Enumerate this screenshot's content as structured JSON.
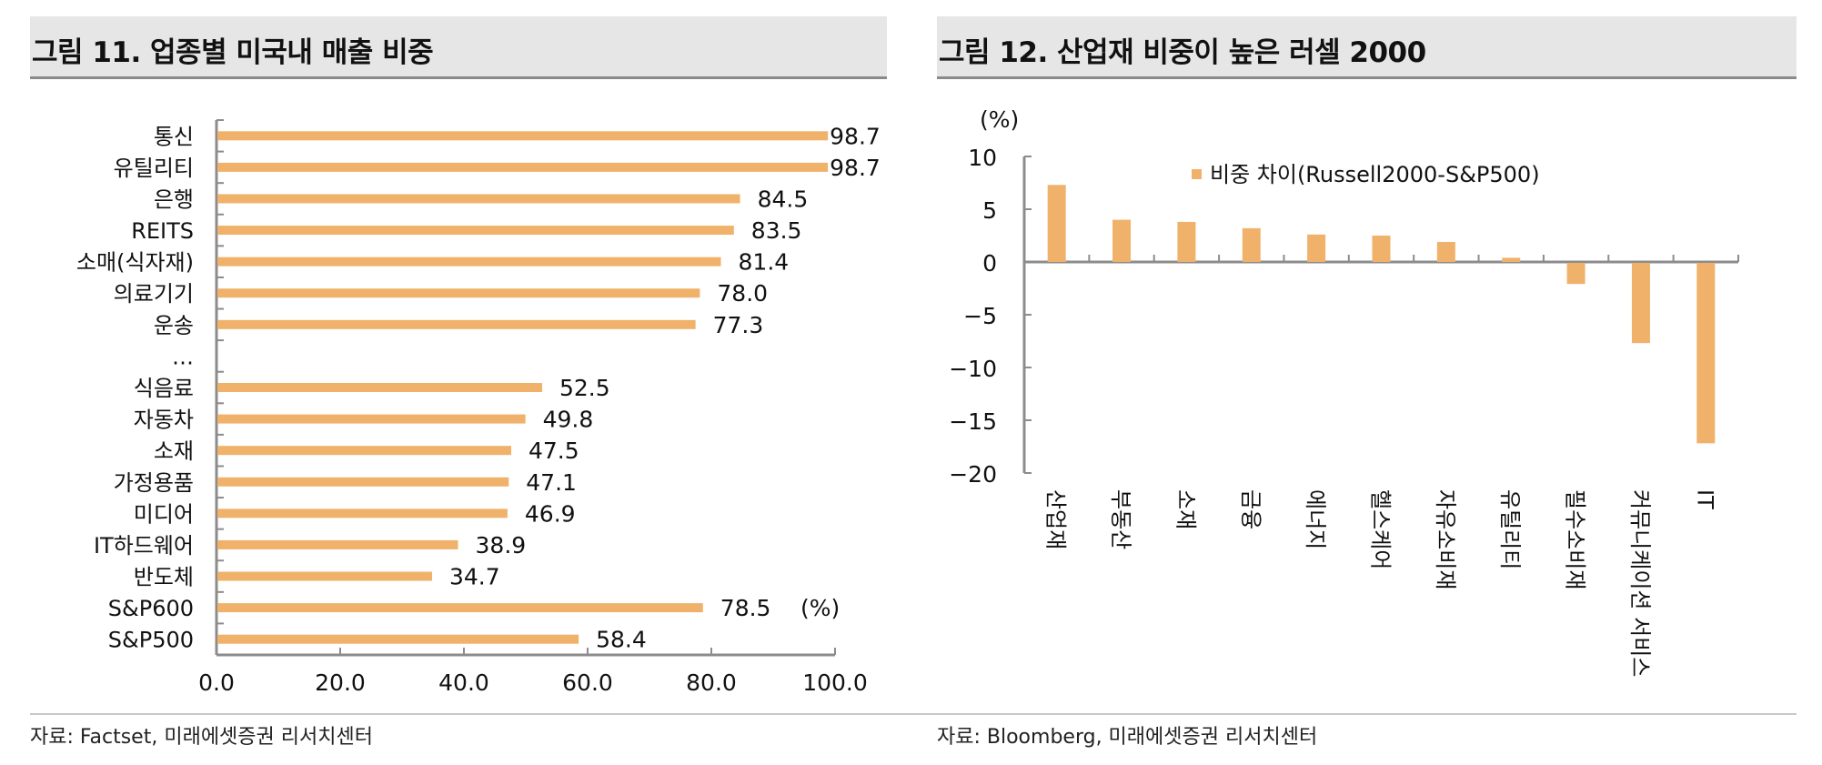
{
  "figure_left": {
    "title": "그림 11. 업종별 미국내 매출 비중",
    "source": "자료: Factset, 미래에셋증권 리서치센터"
  },
  "figure_right": {
    "title": "그림 12. 산업재 비중이 높은 러셀 2000",
    "source": "자료: Bloomberg, 미래에셋증권 리서치센터"
  },
  "chart_data": [
    {
      "type": "bar",
      "orientation": "horizontal",
      "title": "그림 11. 업종별 미국내 매출 비중",
      "categories": [
        "통신",
        "유틸리티",
        "은행",
        "REITS",
        "소매(식자재)",
        "의료기기",
        "운송",
        "…",
        "식음료",
        "자동차",
        "소재",
        "가정용품",
        "미디어",
        "IT하드웨어",
        "반도체",
        "S&P600",
        "S&P500"
      ],
      "values": [
        98.7,
        98.7,
        84.5,
        83.5,
        81.4,
        78.0,
        77.3,
        null,
        52.5,
        49.8,
        47.5,
        47.1,
        46.9,
        38.9,
        34.7,
        78.5,
        58.4
      ],
      "value_labels": [
        "98.7",
        "98.7",
        "84.5",
        "83.5",
        "81.4",
        "78.0",
        "77.3",
        "",
        "52.5",
        "49.8",
        "47.5",
        "47.1",
        "46.9",
        "38.9",
        "34.7",
        "78.5",
        "58.4"
      ],
      "unit_label": "(%)",
      "xlim": [
        0,
        100
      ],
      "xticks": [
        0,
        20,
        40,
        60,
        80,
        100
      ],
      "xtick_labels": [
        "0.0",
        "20.0",
        "40.0",
        "60.0",
        "80.0",
        "100.0"
      ],
      "xlabel": "",
      "ylabel": "",
      "color": "#f0b26b",
      "grid": false,
      "legend": null
    },
    {
      "type": "bar",
      "orientation": "vertical",
      "title": "그림 12. 산업재 비중이 높은 러셀 2000",
      "categories": [
        "산업재",
        "부동산",
        "소재",
        "금융",
        "에너지",
        "헬스케어",
        "자유소비재",
        "유틸리티",
        "필수소비재",
        "커뮤니케이션 서비스",
        "IT"
      ],
      "series": [
        {
          "name": "비중 차이(Russell2000-S&P500)",
          "values": [
            7.3,
            4.0,
            3.8,
            3.2,
            2.6,
            2.5,
            1.9,
            0.4,
            -2.0,
            -7.6,
            -17.1
          ]
        }
      ],
      "ylabel": "(%)",
      "xlabel": "",
      "ylim": [
        -20,
        10
      ],
      "yticks": [
        10,
        5,
        0,
        -5,
        -10,
        -15,
        -20
      ],
      "ytick_labels": [
        "10",
        "5",
        "0",
        "−5",
        "−10",
        "−15",
        "−20"
      ],
      "color": "#f0b26b",
      "grid": false,
      "legend": "top-right"
    }
  ]
}
